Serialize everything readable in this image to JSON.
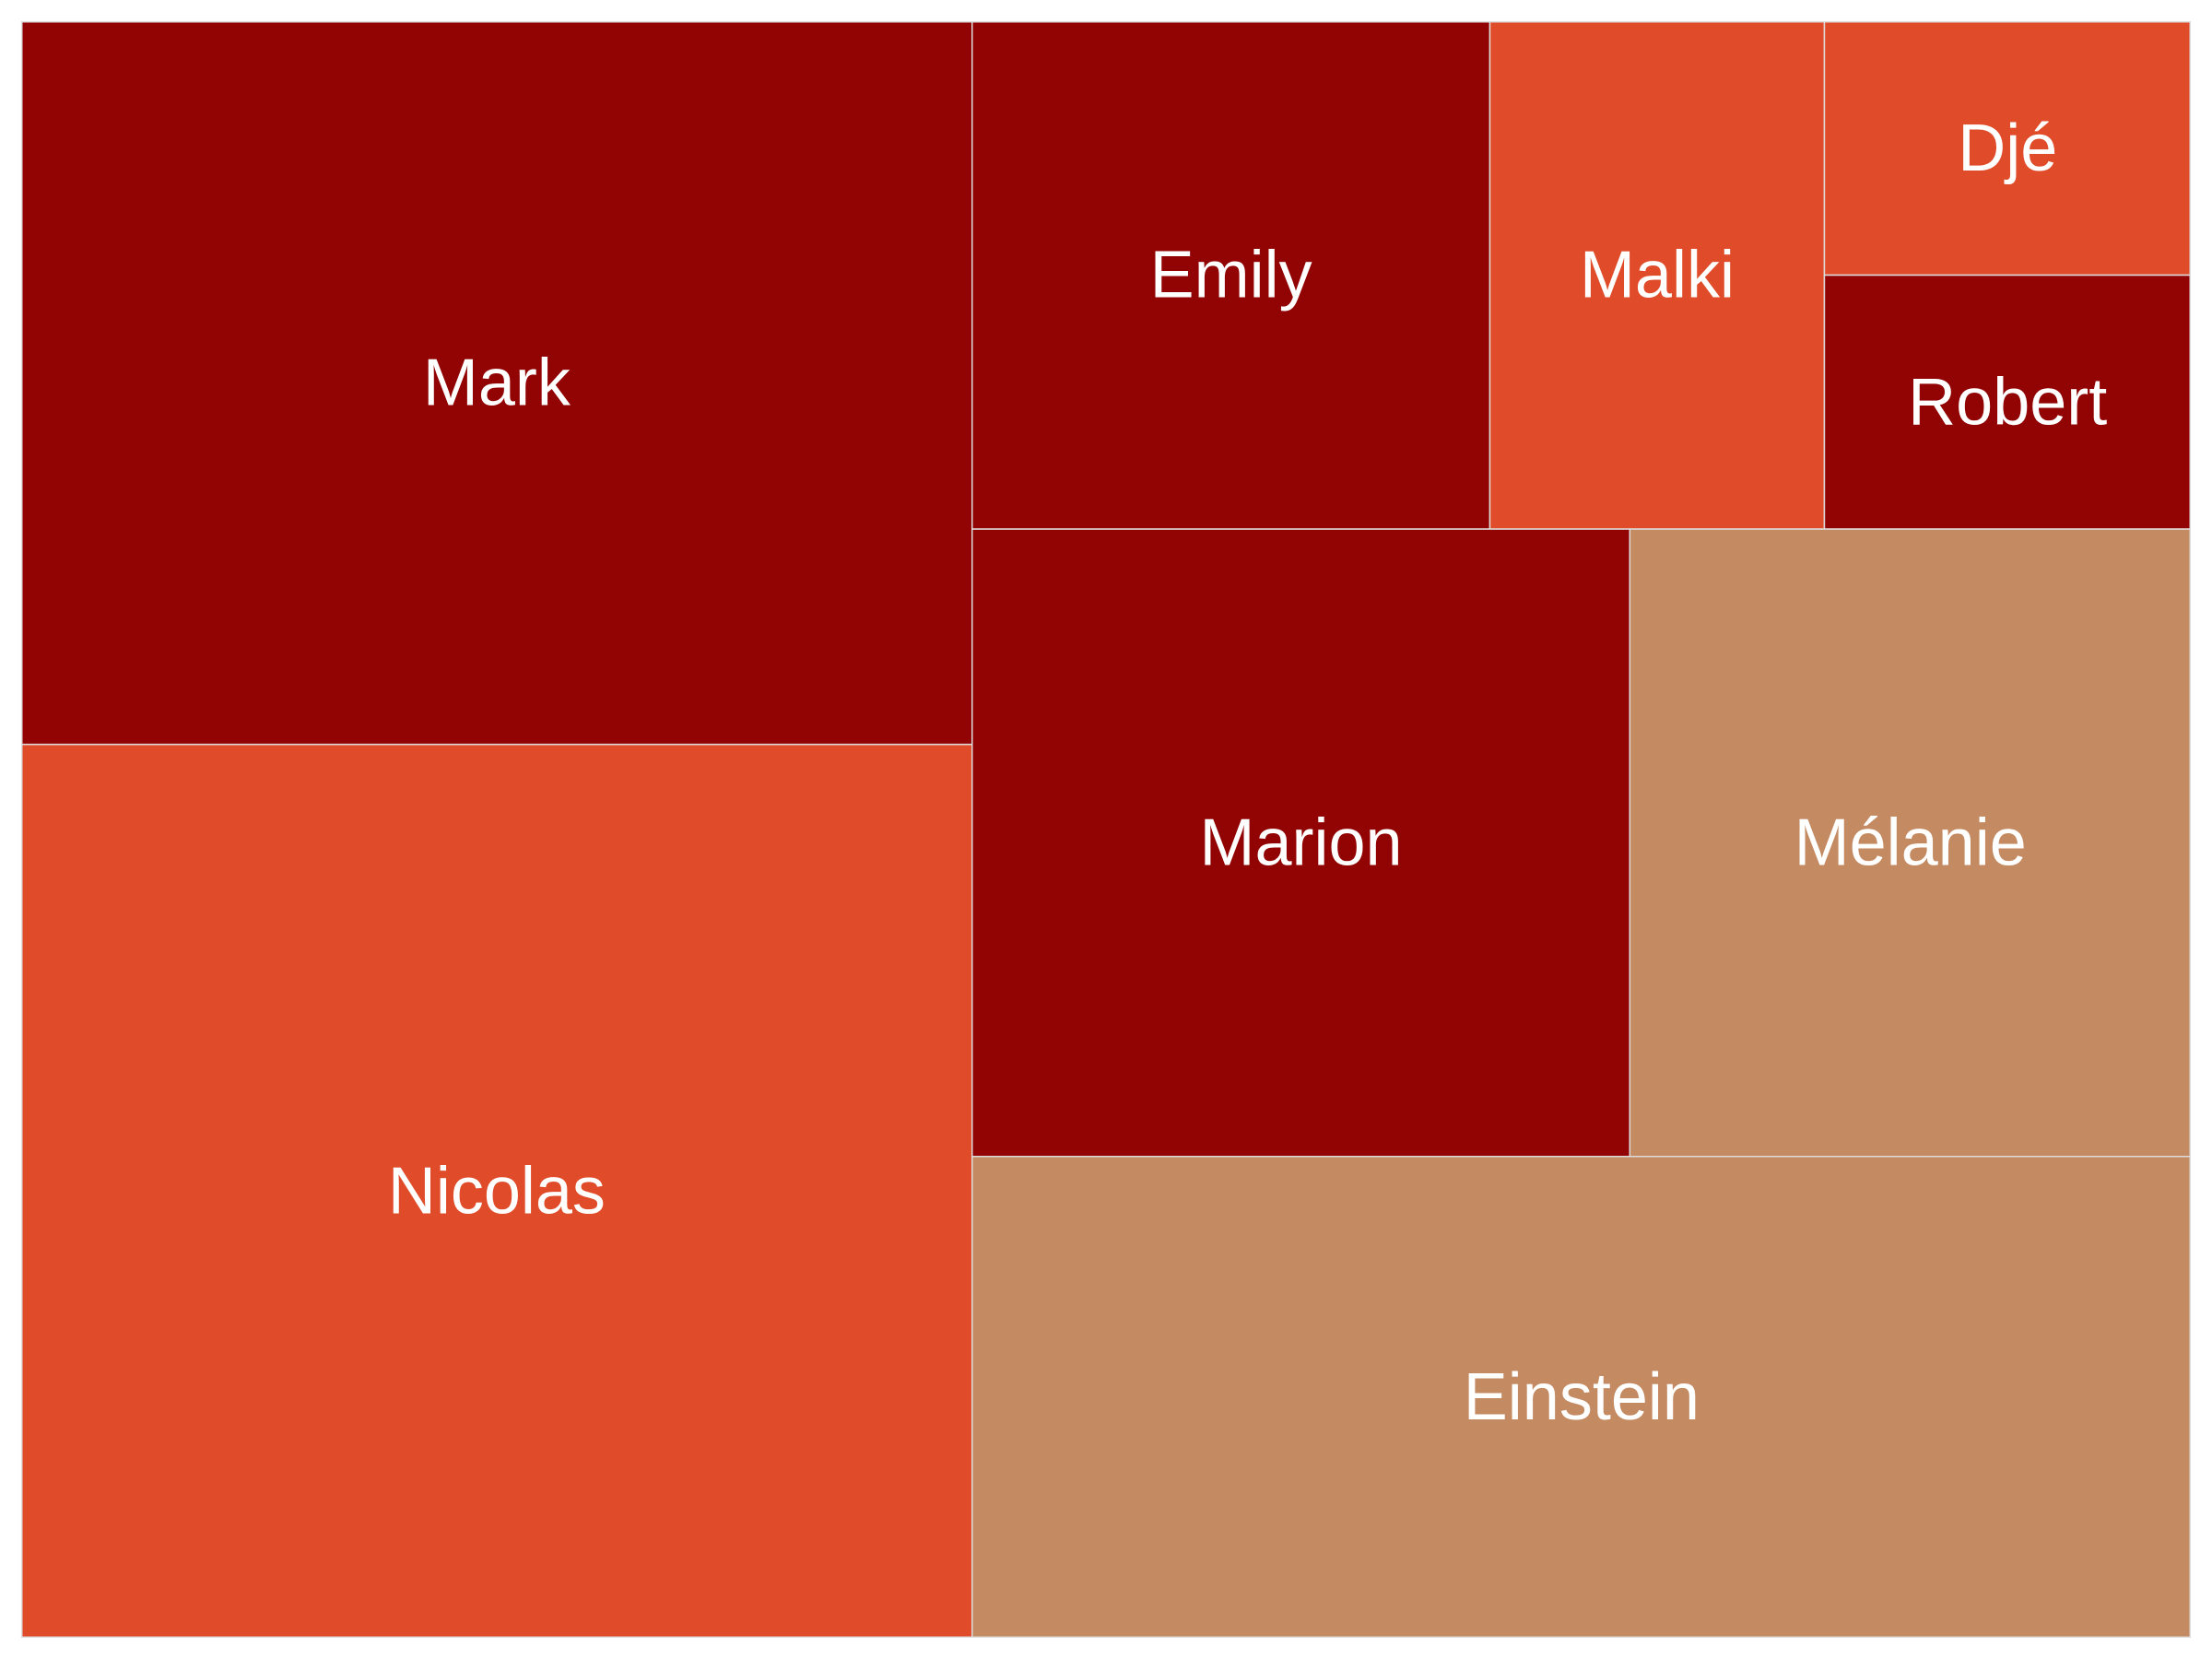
{
  "chart_data": {
    "type": "treemap",
    "title": "",
    "palette": {
      "dark_red": "#920303",
      "orange_red": "#e04c29",
      "tan": "#c48a62"
    },
    "items": [
      {
        "name": "Mark",
        "value": 34.0,
        "color": "#920303"
      },
      {
        "name": "Nicolas",
        "value": 42.0,
        "color": "#e04c29"
      },
      {
        "name": "Emily",
        "value": 13.0,
        "color": "#920303"
      },
      {
        "name": "Malki",
        "value": 8.4,
        "color": "#e04c29"
      },
      {
        "name": "Djé",
        "value": 4.6,
        "color": "#e04c29"
      },
      {
        "name": "Robert",
        "value": 4.6,
        "color": "#920303"
      },
      {
        "name": "Marion",
        "value": 20.4,
        "color": "#920303"
      },
      {
        "name": "Mélanie",
        "value": 17.4,
        "color": "#c48a62"
      },
      {
        "name": "Einstein",
        "value": 29.0,
        "color": "#c48a62"
      }
    ]
  }
}
